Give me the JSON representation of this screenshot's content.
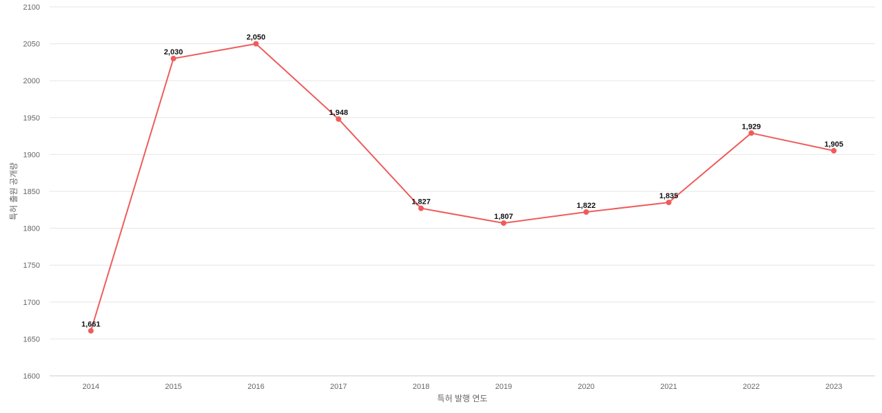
{
  "chart_data": {
    "type": "line",
    "title": "",
    "xlabel": "특허 발행 연도",
    "ylabel": "특허 출원 공개량",
    "categories": [
      "2014",
      "2015",
      "2016",
      "2017",
      "2018",
      "2019",
      "2020",
      "2021",
      "2022",
      "2023"
    ],
    "series": [
      {
        "values": [
          1661,
          2030,
          2050,
          1948,
          1827,
          1807,
          1822,
          1835,
          1929,
          1905
        ],
        "labels": [
          "1,661",
          "2,030",
          "2,050",
          "1,948",
          "1,827",
          "1,807",
          "1,822",
          "1,835",
          "1,929",
          "1,905"
        ],
        "color": "#ef5b5b"
      }
    ],
    "ylim": [
      1600,
      2100
    ],
    "yticks": [
      "1600",
      "1650",
      "1700",
      "1750",
      "1800",
      "1850",
      "1900",
      "1950",
      "2000",
      "2050",
      "2100"
    ],
    "grid": true,
    "legend": "none"
  }
}
